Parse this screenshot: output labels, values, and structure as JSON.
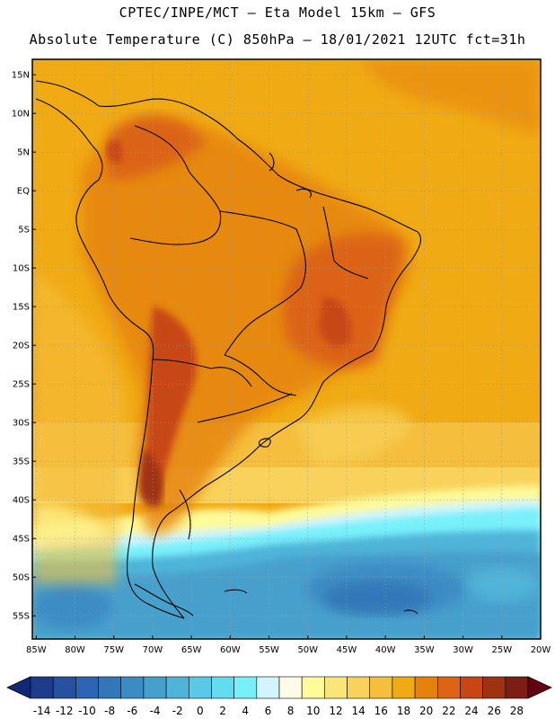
{
  "header": {
    "line1": "CPTEC/INPE/MCT –  Eta Model 15km – GFS",
    "line2": "Absolute Temperature (C) 850hPa – 18/01/2021 12UTC fct=31h"
  },
  "map": {
    "lat_labels": [
      "15N",
      "10N",
      "5N",
      "EQ",
      "5S",
      "10S",
      "15S",
      "20S",
      "25S",
      "30S",
      "35S",
      "40S",
      "45S",
      "50S",
      "55S"
    ],
    "lon_labels": [
      "85W",
      "80W",
      "75W",
      "70W",
      "65W",
      "60W",
      "55W",
      "50W",
      "45W",
      "40W",
      "35W",
      "30W",
      "25W",
      "20W"
    ],
    "lat_range": [
      17,
      -58
    ],
    "lon_range": [
      -85.5,
      -20
    ],
    "lat_values": [
      15,
      10,
      5,
      0,
      -5,
      -10,
      -15,
      -20,
      -25,
      -30,
      -35,
      -40,
      -45,
      -50,
      -55
    ],
    "lon_values": [
      -85,
      -80,
      -75,
      -70,
      -65,
      -60,
      -55,
      -50,
      -45,
      -40,
      -35,
      -30,
      -25,
      -20
    ]
  },
  "colorbar": {
    "labels": [
      "-14",
      "-12",
      "-10",
      "-8",
      "-6",
      "-4",
      "-2",
      "0",
      "2",
      "4",
      "6",
      "8",
      "10",
      "12",
      "14",
      "16",
      "18",
      "20",
      "22",
      "24",
      "26",
      "28"
    ],
    "colors": [
      "#1e3c8c",
      "#2650a0",
      "#2d64b4",
      "#3278b8",
      "#3c8cc4",
      "#46a0cc",
      "#50b4d8",
      "#5ac8e6",
      "#64dcf0",
      "#78f0fa",
      "#d2f4fc",
      "#fffbe6",
      "#fffa9a",
      "#fae678",
      "#f8d25a",
      "#f5be3c",
      "#f0aa14",
      "#e6820a",
      "#dc6414",
      "#c84614",
      "#a03214",
      "#7d1e14"
    ],
    "low_arrow_color": "#0f2878",
    "high_arrow_color": "#64000f"
  }
}
